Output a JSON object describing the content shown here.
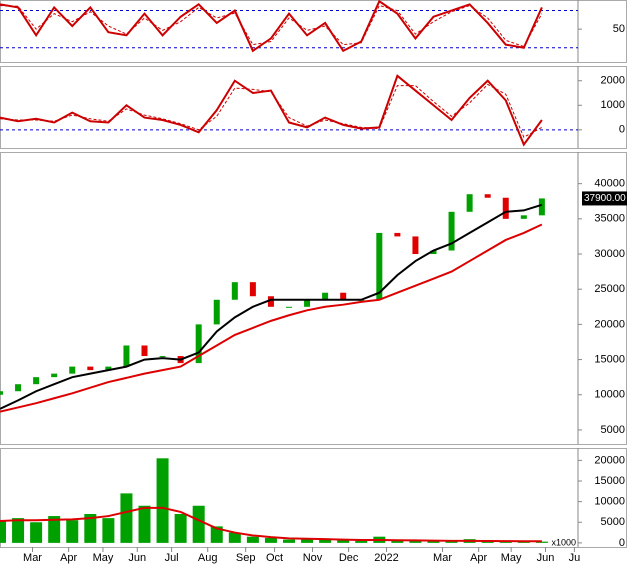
{
  "x_axis": {
    "xlim": [
      0,
      32
    ],
    "xticks": [
      {
        "value": 1.8,
        "label": "Mar"
      },
      {
        "value": 3.8,
        "label": "Apr"
      },
      {
        "value": 5.7,
        "label": "May"
      },
      {
        "value": 7.6,
        "label": "Jun"
      },
      {
        "value": 9.5,
        "label": "Jul"
      },
      {
        "value": 11.5,
        "label": "Aug"
      },
      {
        "value": 13.6,
        "label": "Sep"
      },
      {
        "value": 15.2,
        "label": "Oct"
      },
      {
        "value": 17.3,
        "label": "Nov"
      },
      {
        "value": 19.3,
        "label": "Dec"
      },
      {
        "value": 21.4,
        "label": "2022"
      },
      {
        "value": 24.5,
        "label": "Mar"
      },
      {
        "value": 26.5,
        "label": "Apr"
      },
      {
        "value": 28.3,
        "label": "May"
      },
      {
        "value": 30.2,
        "label": "Jun"
      },
      {
        "value": 31.8,
        "label": "Ju"
      }
    ]
  },
  "chart_data": [
    {
      "type": "line",
      "ylim": [
        -3,
        97
      ],
      "yticks": [
        50
      ],
      "reference_lines": [
        80,
        20
      ],
      "series": [
        {
          "color": "#cc0000",
          "values": [
            90,
            85,
            40,
            85,
            55,
            85,
            45,
            40,
            75,
            40,
            70,
            90,
            60,
            80,
            15,
            35,
            75,
            40,
            60,
            15,
            30,
            95,
            75,
            35,
            70,
            80,
            90,
            60,
            25,
            20,
            85
          ]
        },
        {
          "color": "#cc0000",
          "dashed": true,
          "values": [
            88,
            87,
            50,
            75,
            62,
            78,
            55,
            42,
            68,
            48,
            62,
            85,
            68,
            76,
            25,
            30,
            68,
            48,
            55,
            25,
            28,
            88,
            80,
            42,
            62,
            78,
            88,
            68,
            32,
            22,
            75
          ]
        }
      ]
    },
    {
      "type": "line",
      "ylim": [
        -740,
        2600
      ],
      "yticks": [
        2000,
        1000,
        0
      ],
      "reference_lines": [
        0
      ],
      "series": [
        {
          "color": "#cc0000",
          "values": [
            500,
            350,
            450,
            300,
            700,
            350,
            300,
            1000,
            500,
            400,
            200,
            -100,
            800,
            2000,
            1500,
            1600,
            300,
            100,
            500,
            200,
            50,
            100,
            2200,
            1600,
            1000,
            400,
            1300,
            2000,
            1200,
            -600,
            400
          ]
        },
        {
          "color": "#cc0000",
          "dashed": true,
          "values": [
            450,
            400,
            400,
            350,
            600,
            450,
            350,
            850,
            600,
            450,
            250,
            0,
            550,
            1700,
            1650,
            1550,
            500,
            150,
            400,
            250,
            100,
            50,
            1800,
            1800,
            1150,
            550,
            1100,
            1850,
            1450,
            -300,
            100
          ]
        }
      ]
    },
    {
      "type": "candlestick",
      "ylim": [
        3000,
        44500
      ],
      "yticks": [
        40000,
        35000,
        30000,
        25000,
        20000,
        15000,
        10000,
        5000
      ],
      "price_marker": {
        "value": 37900,
        "label": "37900.00"
      },
      "up_color": "#00a000",
      "down_color": "#e00000",
      "open": [
        10000,
        10500,
        11500,
        12500,
        13000,
        14000,
        13500,
        14000,
        17000,
        15500,
        15500,
        14500,
        20000,
        23500,
        26000,
        24000,
        22500,
        22500,
        23500,
        24500,
        23500,
        23500,
        33000,
        32500,
        30000,
        30500,
        36000,
        38500,
        38000,
        35000,
        35500
      ],
      "close": [
        10500,
        11500,
        12500,
        13000,
        14000,
        13500,
        14000,
        17000,
        15500,
        15500,
        14500,
        20000,
        23500,
        26000,
        24000,
        22500,
        22500,
        23500,
        24500,
        23500,
        23500,
        33000,
        32500,
        30000,
        30500,
        36000,
        38500,
        38000,
        35000,
        35500,
        37900
      ],
      "series": [
        {
          "color": "#000000",
          "values": [
            8000,
            9200,
            10500,
            11500,
            12500,
            13000,
            13500,
            14000,
            15000,
            15200,
            15000,
            16000,
            19000,
            21000,
            22500,
            23500,
            23500,
            23500,
            23500,
            23500,
            23500,
            24500,
            27000,
            29000,
            30500,
            31500,
            33000,
            34500,
            36000,
            36200,
            37000
          ]
        },
        {
          "color": "#dd0000",
          "values": [
            7600,
            8200,
            8800,
            9500,
            10200,
            11000,
            11800,
            12400,
            13000,
            13500,
            14000,
            15500,
            17000,
            18500,
            19500,
            20500,
            21300,
            22000,
            22500,
            22800,
            23200,
            23500,
            24500,
            25500,
            26500,
            27500,
            29000,
            30500,
            32000,
            33000,
            34200
          ]
        }
      ]
    },
    {
      "type": "bar",
      "ylim": [
        -1000,
        23000
      ],
      "yticks": [
        20000,
        15000,
        10000,
        5000,
        0
      ],
      "unit_label": "x1000",
      "color": "#00a000",
      "values": [
        5500,
        6000,
        5000,
        6500,
        5500,
        7000,
        6000,
        12000,
        9000,
        20500,
        7000,
        9000,
        4000,
        2500,
        1500,
        1200,
        800,
        900,
        700,
        600,
        500,
        1500,
        700,
        600,
        500,
        400,
        900,
        600,
        400,
        300,
        300
      ],
      "series": [
        {
          "color": "#dd0000",
          "values": [
            5300,
            5500,
            5500,
            5600,
            5700,
            6000,
            6500,
            7500,
            8500,
            8500,
            7500,
            5500,
            3500,
            2500,
            1800,
            1400,
            1100,
            1000,
            900,
            800,
            700,
            700,
            650,
            600,
            550,
            500,
            500,
            450,
            420,
            400,
            380
          ]
        }
      ]
    }
  ]
}
